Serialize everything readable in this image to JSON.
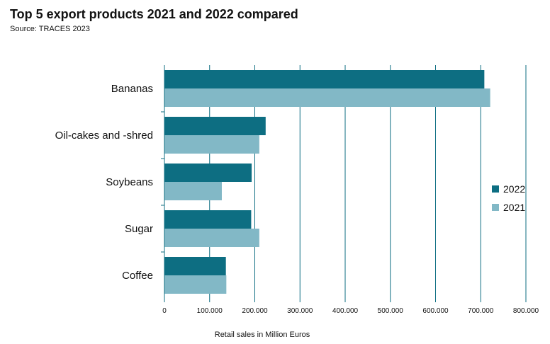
{
  "chart_data": {
    "type": "bar",
    "orientation": "horizontal",
    "title": "Top 5 export products 2021 and 2022 compared",
    "subtitle": "Source: TRACES 2023",
    "categories": [
      "Bananas",
      "Oil-cakes and -shred",
      "Soybeans",
      "Sugar",
      "Coffee"
    ],
    "series": [
      {
        "name": "2022",
        "color": "#0d6e82",
        "values": [
          708000,
          224000,
          193000,
          192000,
          136000
        ]
      },
      {
        "name": "2021",
        "color": "#82b8c6",
        "values": [
          721000,
          210000,
          127000,
          210000,
          137000
        ]
      }
    ],
    "xlabel": "Retail sales in Million Euros",
    "ylabel": "",
    "xlim": [
      0,
      800000
    ],
    "xticks": [
      "0",
      "100.000",
      "200.000",
      "300.000",
      "400.000",
      "500.000",
      "600.000",
      "700.000",
      "800.000"
    ],
    "grid": true,
    "legend_position": "right"
  }
}
